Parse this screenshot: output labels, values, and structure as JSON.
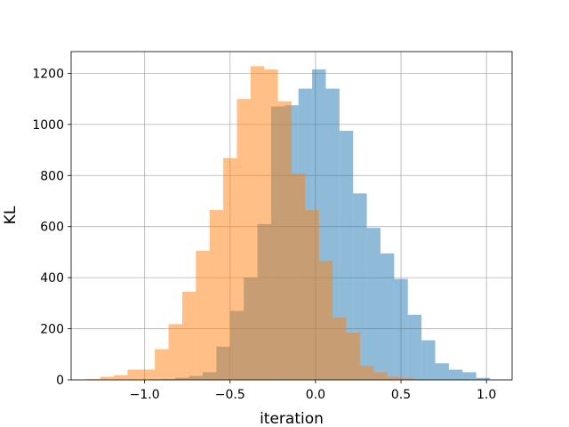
{
  "chart_data": {
    "type": "bar",
    "title": "",
    "xlabel": "iteration",
    "ylabel": "KL",
    "xlim": [
      -1.43,
      1.15
    ],
    "ylim": [
      0,
      1285
    ],
    "grid": true,
    "x_ticks": [
      -1.0,
      -0.5,
      0.0,
      0.5,
      1.0
    ],
    "x_tick_labels": [
      "−1.0",
      "−0.5",
      "0.0",
      "0.5",
      "1.0"
    ],
    "y_ticks": [
      0,
      200,
      400,
      600,
      800,
      1000,
      1200
    ],
    "y_tick_labels": [
      "0",
      "200",
      "400",
      "600",
      "800",
      "1000",
      "1200"
    ],
    "series": [
      {
        "color": "#1f77b4",
        "opacity": 0.5,
        "bin_edges": [
          -0.98,
          -0.9,
          -0.82,
          -0.74,
          -0.66,
          -0.58,
          -0.5,
          -0.42,
          -0.34,
          -0.26,
          -0.18,
          -0.1,
          -0.02,
          0.06,
          0.14,
          0.22,
          0.3,
          0.38,
          0.46,
          0.54,
          0.62,
          0.7,
          0.78,
          0.86,
          0.94,
          1.02
        ],
        "counts": [
          2,
          3,
          8,
          15,
          30,
          130,
          270,
          400,
          610,
          1070,
          1075,
          1140,
          1215,
          1140,
          975,
          730,
          595,
          495,
          395,
          255,
          155,
          65,
          40,
          30,
          8
        ]
      },
      {
        "color": "#ff7f0e",
        "opacity": 0.5,
        "bin_edges": [
          -1.34,
          -1.26,
          -1.18,
          -1.1,
          -1.02,
          -0.94,
          -0.86,
          -0.78,
          -0.7,
          -0.62,
          -0.54,
          -0.46,
          -0.38,
          -0.3,
          -0.22,
          -0.14,
          -0.06,
          0.02,
          0.1,
          0.18,
          0.26,
          0.34,
          0.42,
          0.5,
          0.58
        ],
        "counts": [
          3,
          12,
          18,
          40,
          40,
          120,
          218,
          345,
          505,
          665,
          868,
          1100,
          1228,
          1215,
          1090,
          808,
          665,
          465,
          245,
          185,
          55,
          30,
          12,
          8
        ]
      }
    ]
  }
}
